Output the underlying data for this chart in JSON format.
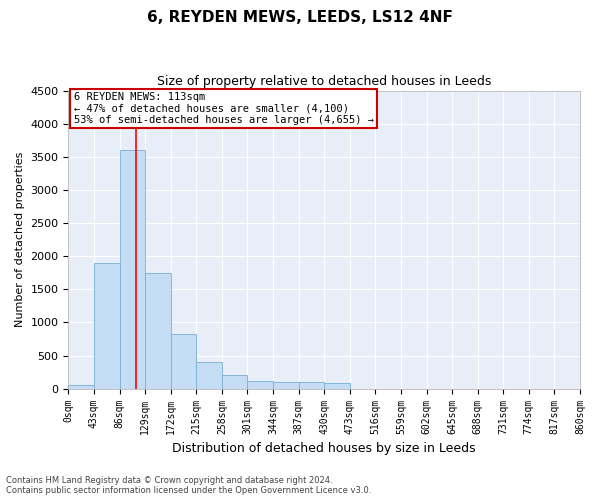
{
  "title": "6, REYDEN MEWS, LEEDS, LS12 4NF",
  "subtitle": "Size of property relative to detached houses in Leeds",
  "xlabel": "Distribution of detached houses by size in Leeds",
  "ylabel": "Number of detached properties",
  "bin_labels": [
    "0sqm",
    "43sqm",
    "86sqm",
    "129sqm",
    "172sqm",
    "215sqm",
    "258sqm",
    "301sqm",
    "344sqm",
    "387sqm",
    "430sqm",
    "473sqm",
    "516sqm",
    "559sqm",
    "602sqm",
    "645sqm",
    "688sqm",
    "731sqm",
    "774sqm",
    "817sqm",
    "860sqm"
  ],
  "bar_values": [
    50,
    1900,
    3600,
    1750,
    820,
    400,
    200,
    115,
    105,
    100,
    80,
    0,
    0,
    0,
    0,
    0,
    0,
    0,
    0,
    0
  ],
  "bar_color": "#c5ddf4",
  "bar_edgecolor": "#7bafd4",
  "ylim": [
    0,
    4500
  ],
  "yticks": [
    0,
    500,
    1000,
    1500,
    2000,
    2500,
    3000,
    3500,
    4000,
    4500
  ],
  "red_line_x": 2.63,
  "annotation_line1": "6 REYDEN MEWS: 113sqm",
  "annotation_line2": "← 47% of detached houses are smaller (4,100)",
  "annotation_line3": "53% of semi-detached houses are larger (4,655) →",
  "annotation_box_color": "#ffffff",
  "annotation_box_edgecolor": "#cc0000",
  "footer_line1": "Contains HM Land Registry data © Crown copyright and database right 2024.",
  "footer_line2": "Contains public sector information licensed under the Open Government Licence v3.0.",
  "background_color": "#ffffff",
  "plot_bg_color": "#e8eef8",
  "grid_color": "#ffffff",
  "title_fontsize": 11,
  "subtitle_fontsize": 9,
  "ylabel_fontsize": 8,
  "xlabel_fontsize": 9
}
